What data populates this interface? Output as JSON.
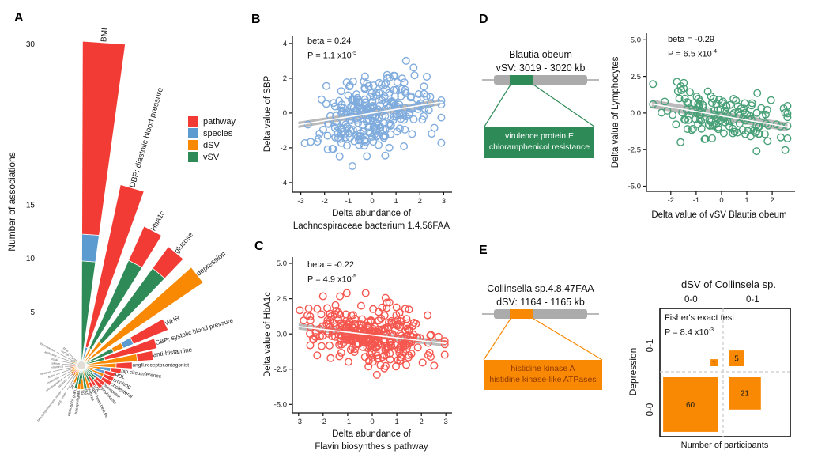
{
  "panels": {
    "a": "A",
    "b": "B",
    "c": "C",
    "d": "D",
    "e": "E"
  },
  "colors": {
    "pathway": "#F23B35",
    "species": "#5B9BD0",
    "dSV": "#F98903",
    "vSV": "#2E8B57",
    "trend_band": "#b3b3b3",
    "trend_line": "#ffffff",
    "axis": "#111111"
  },
  "chart_data": [
    {
      "type": "polar_bar",
      "axis_label": "Number of associations",
      "radial_ticks": [
        {
          "value": 5,
          "label": "5"
        },
        {
          "value": 10,
          "label": "10"
        },
        {
          "value": 15,
          "label": "15"
        },
        {
          "value": 30,
          "label": "30"
        }
      ],
      "legend": [
        {
          "label": "pathway",
          "color": "#F23B35"
        },
        {
          "label": "species",
          "color": "#5B9BD0"
        },
        {
          "label": "dSV",
          "color": "#F98903"
        },
        {
          "label": "vSV",
          "color": "#2E8B57"
        }
      ],
      "bars": [
        {
          "label": "BMI",
          "angle": 4,
          "segments": [
            [
              "vSV",
              9.5
            ],
            [
              "species",
              2.5
            ],
            [
              "pathway",
              18
            ]
          ]
        },
        {
          "label": "DBP: diastolic blood pressure",
          "angle": 16,
          "segments": [
            [
              "species",
              1.5
            ],
            [
              "pathway",
              15.5
            ]
          ]
        },
        {
          "label": "HbA1c",
          "angle": 28,
          "segments": [
            [
              "dSV",
              1.5
            ],
            [
              "vSV",
              9
            ],
            [
              "pathway",
              3.5
            ]
          ]
        },
        {
          "label": "glucose",
          "angle": 40,
          "segments": [
            [
              "dSV",
              2.5
            ],
            [
              "vSV",
              8.5
            ],
            [
              "pathway",
              2.5
            ]
          ]
        },
        {
          "label": "depression",
          "angle": 52,
          "segments": [
            [
              "dSV",
              13.5
            ]
          ]
        },
        {
          "label": "WHR",
          "angle": 64,
          "segments": [
            [
              "vSV",
              3
            ],
            [
              "dSV",
              1
            ],
            [
              "species",
              1
            ],
            [
              "pathway",
              3.5
            ]
          ]
        },
        {
          "label": "SBP: systolic blood pressure",
          "angle": 73.5,
          "segments": [
            [
              "vSV",
              2
            ],
            [
              "pathway",
              5
            ]
          ]
        },
        {
          "label": "anti-histamine",
          "angle": 82,
          "segments": [
            [
              "dSV",
              5
            ],
            [
              "pathway",
              1.5
            ]
          ]
        },
        {
          "label": "angII.receptor.antagonist",
          "angle": 90,
          "segments": [
            [
              "dSV",
              3
            ],
            [
              "pathway",
              1.5
            ]
          ]
        },
        {
          "label": "hip.circumference",
          "angle": 98,
          "segments": [
            [
              "dSV",
              1.5
            ],
            [
              "species",
              1
            ],
            [
              "pathway",
              1
            ]
          ]
        },
        {
          "label": "HDL",
          "angle": 106,
          "segments": [
            [
              "dSV",
              1
            ],
            [
              "species",
              1
            ],
            [
              "pathway",
              1
            ]
          ]
        },
        {
          "label": "smoking",
          "angle": 114,
          "segments": [
            [
              "dSV",
              2
            ],
            [
              "pathway",
              1
            ]
          ]
        },
        {
          "label": "cholesterol",
          "angle": 122,
          "segments": [
            [
              "vSV",
              1
            ],
            [
              "species",
              1
            ],
            [
              "pathway",
              1
            ]
          ]
        },
        {
          "label": "hemoglobin",
          "angle": 130,
          "segments": [
            [
              "vSV",
              1.5
            ],
            [
              "pathway",
              1
            ]
          ]
        },
        {
          "label": "lymphocytes",
          "angle": 138,
          "segments": [
            [
              "vSV",
              1.5
            ],
            [
              "pathway",
              1
            ]
          ]
        },
        {
          "label": "LDL",
          "angle": 146,
          "segments": [
            [
              "vSV",
              1
            ],
            [
              "pathway",
              1
            ]
          ]
        },
        {
          "label": "HBF: heart beat fre.",
          "angle": 154,
          "segments": [
            [
              "vSV",
              1.5
            ],
            [
              "pathway",
              0.5
            ]
          ]
        },
        {
          "label": "asthma",
          "angle": 162,
          "segments": [
            [
              "dSV",
              2
            ]
          ]
        },
        {
          "label": "IBS",
          "angle": 170,
          "segments": [
            [
              "vSV",
              2
            ]
          ]
        },
        {
          "label": "TG",
          "angle": 178,
          "segments": [
            [
              "vSV",
              1
            ],
            [
              "dSV",
              1
            ]
          ]
        },
        {
          "label": "basophil gran.",
          "angle": 186,
          "segments": [
            [
              "vSV",
              1.5
            ],
            [
              "dSV",
              0.5
            ]
          ]
        },
        {
          "label": "eosinophil gran.",
          "angle": 194,
          "segments": [
            [
              "vSV",
              2
            ]
          ]
        },
        {
          "label": "PPI",
          "angle": 202,
          "segments": [
            [
              "dSV",
              1.5
            ]
          ]
        },
        {
          "label": "ACE.inhibitor",
          "angle": 210,
          "segments": [
            [
              "dSV",
              1
            ]
          ]
        },
        {
          "label": "beta.sympathomimetic.inhaler",
          "angle": 218,
          "segments": [
            [
              "dSV",
              1
            ]
          ]
        },
        {
          "label": "creatinine",
          "angle": 226,
          "segments": [
            [
              "pathway",
              1
            ]
          ]
        },
        {
          "label": "chromogranin.A",
          "angle": 234,
          "segments": [
            [
              "dSV",
              1
            ]
          ]
        },
        {
          "label": "metformin",
          "angle": 242,
          "segments": [
            [
              "dSV",
              0.9
            ]
          ]
        },
        {
          "label": "statin",
          "angle": 250,
          "segments": [
            [
              "dSV",
              0.9
            ]
          ]
        },
        {
          "label": "laxatives",
          "angle": 258,
          "segments": [
            [
              "dSV",
              0.8
            ]
          ]
        },
        {
          "label": "vitamin.D",
          "angle": 266,
          "segments": [
            [
              "pathway",
              0.8
            ]
          ]
        },
        {
          "label": "calcium",
          "angle": 274,
          "segments": [
            [
              "dSV",
              0.8
            ]
          ]
        },
        {
          "label": "insulin",
          "angle": 282,
          "segments": [
            [
              "vSV",
              0.7
            ]
          ]
        },
        {
          "label": "antibiotics",
          "angle": 290,
          "segments": [
            [
              "dSV",
              0.7
            ]
          ]
        },
        {
          "label": "thrombocytes",
          "angle": 298,
          "segments": [
            [
              "vSV",
              0.7
            ]
          ]
        },
        {
          "label": "hsCRP",
          "angle": 306,
          "segments": [
            [
              "dSV",
              0.6
            ]
          ]
        },
        {
          "label": "MAP",
          "angle": 314,
          "segments": [
            [
              "pathway",
              0.6
            ]
          ]
        }
      ]
    },
    {
      "type": "scatter",
      "stats": {
        "beta": "beta = 0.24",
        "p_prefix": "P = 1.1 x10",
        "p_sup": "-5"
      },
      "ylabel": "Delta value of SBP",
      "xlabel_line1": "Delta abundance of",
      "xlabel_line2": "Lachnospiraceae bacterium 1.4.56FAA",
      "xlim": [
        -3.35,
        3.35
      ],
      "ylim": [
        -4.55,
        4.45
      ],
      "xticks": [
        {
          "v": -3,
          "label": "-3"
        },
        {
          "v": -2,
          "label": "-2"
        },
        {
          "v": -1,
          "label": "-1"
        },
        {
          "v": 0,
          "label": "0"
        },
        {
          "v": 1,
          "label": "1"
        },
        {
          "v": 2,
          "label": "2"
        },
        {
          "v": 3,
          "label": "3"
        }
      ],
      "yticks": [
        {
          "v": -4,
          "label": "-4"
        },
        {
          "v": -2,
          "label": "-2"
        },
        {
          "v": 0,
          "label": "0"
        },
        {
          "v": 2,
          "label": "2"
        },
        {
          "v": 4,
          "label": "4"
        }
      ],
      "n_points": 280,
      "seed": 42,
      "x_sd": 1.25,
      "noise_sd": 1.0,
      "clamp": {
        "x": [
          -3.1,
          2.9
        ],
        "y": [
          -3.05,
          3.0
        ]
      },
      "trend": {
        "x1": -3.1,
        "y1": -0.68,
        "x2": 2.85,
        "y2": 0.62,
        "half_width": 0.18
      },
      "point_color": "#7FABDD"
    },
    {
      "type": "scatter",
      "stats": {
        "beta": "beta = -0.22",
        "p_prefix": "P = 4.9 x10",
        "p_sup": "-5"
      },
      "ylabel": "Delta value of HbA1c",
      "xlabel_line1": "Delta abundance of",
      "xlabel_line2": "Flavin biosynthesis pathway",
      "xlim": [
        -3.25,
        3.25
      ],
      "ylim": [
        -5.6,
        5.45
      ],
      "xticks": [
        {
          "v": -3,
          "label": "-3"
        },
        {
          "v": -2,
          "label": "-2"
        },
        {
          "v": -1,
          "label": "-1"
        },
        {
          "v": 0,
          "label": "0"
        },
        {
          "v": 1,
          "label": "1"
        },
        {
          "v": 2,
          "label": "2"
        },
        {
          "v": 3,
          "label": "3"
        }
      ],
      "yticks": [
        {
          "v": -5,
          "label": "-5.0"
        },
        {
          "v": -2.5,
          "label": "-2.5"
        },
        {
          "v": 0,
          "label": "0.0"
        },
        {
          "v": 2.5,
          "label": "2.5"
        },
        {
          "v": 5,
          "label": "5.0"
        }
      ],
      "n_points": 320,
      "seed": 7,
      "x_sd": 1.2,
      "noise_sd": 1.0,
      "clamp": {
        "x": [
          -2.95,
          2.95
        ],
        "y": [
          -2.9,
          2.9
        ]
      },
      "trend": {
        "x1": -3.0,
        "y1": 0.52,
        "x2": 3.0,
        "y2": -0.68,
        "half_width": 0.22
      },
      "point_color": "#F5564E"
    },
    {
      "type": "scatter",
      "stats": {
        "beta": "beta = -0.29",
        "p_prefix": "P = 6.5 x10",
        "p_sup": "-4"
      },
      "ylabel": "Delta value of Lymphocytes",
      "xlabel_line1": "Delta value of vSV Blautia obeum",
      "xlabel_line2": "",
      "xlim": [
        -2.96,
        2.9
      ],
      "ylim": [
        -5.35,
        5.45
      ],
      "xticks": [
        {
          "v": -2,
          "label": "-2"
        },
        {
          "v": -1,
          "label": "-1"
        },
        {
          "v": 0,
          "label": "0"
        },
        {
          "v": 1,
          "label": "1"
        },
        {
          "v": 2,
          "label": "2"
        }
      ],
      "yticks": [
        {
          "v": -5,
          "label": "-5.0"
        },
        {
          "v": -2.5,
          "label": "-2.5"
        },
        {
          "v": 0,
          "label": "0.0"
        },
        {
          "v": 2.5,
          "label": "2.5"
        },
        {
          "v": 5,
          "label": "5.0"
        }
      ],
      "n_points": 155,
      "seed": 11,
      "x_sd": 1.15,
      "noise_sd": 0.8,
      "clamp": {
        "x": [
          -2.7,
          2.6
        ],
        "y": [
          -2.6,
          2.6
        ]
      },
      "trend": {
        "x1": -2.75,
        "y1": 0.62,
        "x2": 2.6,
        "y2": -0.95,
        "half_width": 0.3
      },
      "point_color": "#48A077"
    },
    {
      "type": "mosaic",
      "title": "dSV of Collinsela sp.",
      "col_labels": [
        "0-0",
        "0-1"
      ],
      "row_labels": [
        "0-1",
        "0-0"
      ],
      "ylabel": "Depression",
      "xlabel": "Number of participants",
      "stats_line1": "Fisher's exact test",
      "p_prefix": "P = 8.4 x10",
      "p_sup": "-3",
      "cells": [
        {
          "row": "0-1",
          "col": "0-0",
          "count": 1
        },
        {
          "row": "0-1",
          "col": "0-1",
          "count": 5
        },
        {
          "row": "0-0",
          "col": "0-0",
          "count": 60
        },
        {
          "row": "0-0",
          "col": "0-1",
          "count": 21
        }
      ],
      "cell_color": "#F98903"
    }
  ],
  "panel_d_diagram": {
    "title_line1": "Blautia obeum",
    "title_line2": "vSV: 3019 - 3020 kb",
    "box_line1": "virulence protein E",
    "box_line2": "chloramphenicol resistance",
    "accent": "#2E8B57",
    "box_text_color": "#FFFFFF"
  },
  "panel_e_diagram": {
    "title_line1": "Collinsella sp.4.8.47FAA",
    "title_line2": "dSV: 1164 - 1165 kb",
    "box_line1": "histidine kinase A",
    "box_line2": "histidine kinase-like ATPases",
    "accent": "#F98903",
    "box_text_color": "#8F3900"
  }
}
